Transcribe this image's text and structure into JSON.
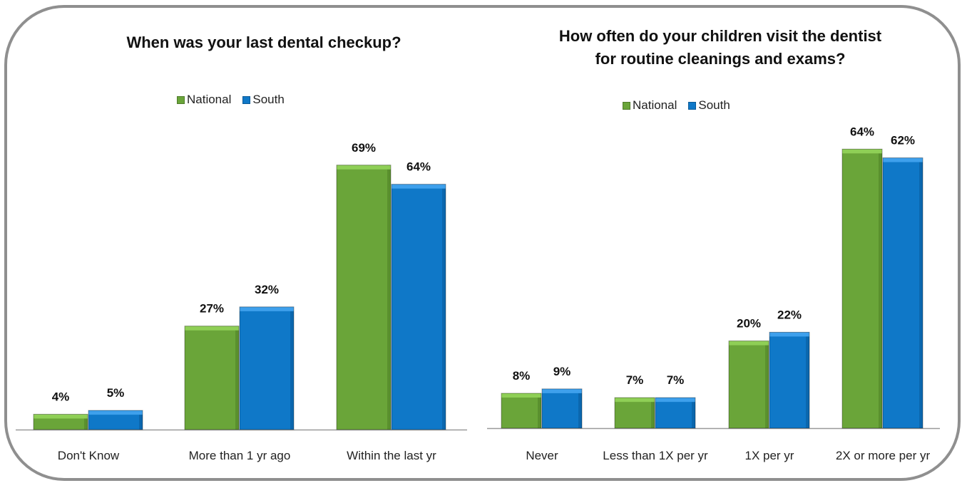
{
  "colors": {
    "national": "#6aa539",
    "south": "#0f78c8",
    "frame": "#8f8f8f"
  },
  "chart_data": [
    {
      "type": "bar",
      "title": "When was your last dental checkup?",
      "categories": [
        "Don't Know",
        "More than 1 yr ago",
        "Within the last yr"
      ],
      "series": [
        {
          "name": "National",
          "values": [
            4,
            27,
            69
          ],
          "labels": [
            "4%",
            "27%",
            "69%"
          ]
        },
        {
          "name": "South",
          "values": [
            5,
            32,
            64
          ],
          "labels": [
            "5%",
            "32%",
            "64%"
          ]
        }
      ],
      "legend": "top-center",
      "grid": false,
      "ylim": [
        0,
        100
      ]
    },
    {
      "type": "bar",
      "title": "How often do your children visit the dentist for routine cleanings and exams?",
      "title_lines": [
        "How often do your children visit the dentist",
        "for routine cleanings and exams?"
      ],
      "categories": [
        "Never",
        "Less than 1X per yr",
        "1X per yr",
        "2X or more per yr"
      ],
      "series": [
        {
          "name": "National",
          "values": [
            8,
            7,
            20,
            64
          ],
          "labels": [
            "8%",
            "7%",
            "20%",
            "64%"
          ]
        },
        {
          "name": "South",
          "values": [
            9,
            7,
            22,
            62
          ],
          "labels": [
            "9%",
            "7%",
            "22%",
            "62%"
          ]
        }
      ],
      "legend": "top-center",
      "grid": false,
      "ylim": [
        0,
        100
      ]
    }
  ]
}
